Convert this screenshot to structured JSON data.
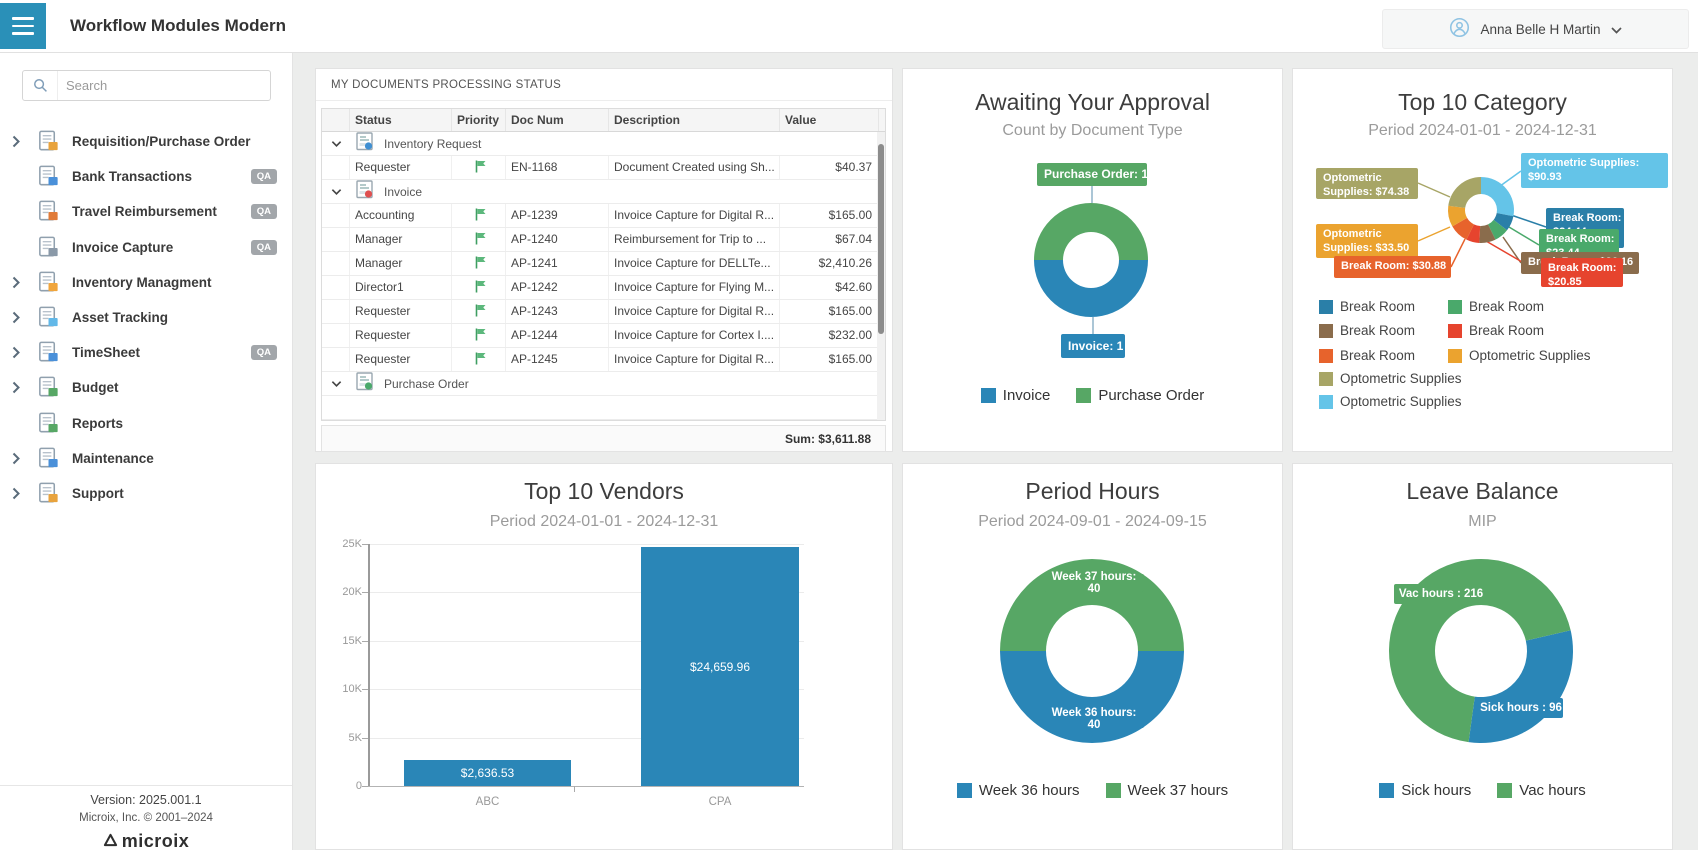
{
  "header": {
    "title": "Workflow Modules Modern",
    "user_name": "Anna Belle H Martin"
  },
  "sidebar": {
    "search_placeholder": "Search",
    "items": [
      {
        "label": "Requisition/Purchase Order",
        "expandable": true,
        "badge": "",
        "icon_color": "#e8a33d"
      },
      {
        "label": "Bank Transactions",
        "expandable": false,
        "badge": "QA",
        "icon_color": "#4a90d9"
      },
      {
        "label": "Travel Reimbursement",
        "expandable": false,
        "badge": "QA",
        "icon_color": "#e07b39"
      },
      {
        "label": "Invoice Capture",
        "expandable": false,
        "badge": "QA",
        "icon_color": "#8a99a8"
      },
      {
        "label": "Inventory Managment",
        "expandable": true,
        "badge": "",
        "icon_color": "#f0a53c"
      },
      {
        "label": "Asset Tracking",
        "expandable": true,
        "badge": "",
        "icon_color": "#62b8e8"
      },
      {
        "label": "TimeSheet",
        "expandable": true,
        "badge": "QA",
        "icon_color": "#4a90d9"
      },
      {
        "label": "Budget",
        "expandable": true,
        "badge": "",
        "icon_color": "#57a765"
      },
      {
        "label": "Reports",
        "expandable": false,
        "badge": "",
        "icon_color": "#57a765"
      },
      {
        "label": "Maintenance",
        "expandable": true,
        "badge": "",
        "icon_color": "#4a90d9"
      },
      {
        "label": "Support",
        "expandable": true,
        "badge": "",
        "icon_color": "#e8a33d"
      }
    ],
    "footer": {
      "version": "Version: 2025.001.1",
      "copyright": "Microix, Inc. © 2001–2024",
      "logo_text": "microix"
    }
  },
  "documents_panel": {
    "title": "MY DOCUMENTS PROCESSING STATUS",
    "columns": [
      "Status",
      "Priority",
      "Doc Num",
      "Description",
      "Value"
    ],
    "groups": [
      {
        "name": "Inventory Request",
        "accent": "#3f8fd2",
        "rows": [
          {
            "status": "Requester",
            "priority": "green-flag",
            "doc_num": "EN-1168",
            "description": "Document Created using Sh...",
            "value": "$40.37"
          }
        ]
      },
      {
        "name": "Invoice",
        "accent": "#e05050",
        "rows": [
          {
            "status": "Accounting",
            "priority": "green-flag",
            "doc_num": "AP-1239",
            "description": "Invoice Capture for Digital R...",
            "value": "$165.00"
          },
          {
            "status": "Manager",
            "priority": "green-flag",
            "doc_num": "AP-1240",
            "description": "Reimbursement for Trip to ...",
            "value": "$67.04"
          },
          {
            "status": "Manager",
            "priority": "green-flag",
            "doc_num": "AP-1241",
            "description": "Invoice Capture for DELLTe...",
            "value": "$2,410.26"
          },
          {
            "status": "Director1",
            "priority": "green-flag",
            "doc_num": "AP-1242",
            "description": "Invoice Capture for Flying M...",
            "value": "$42.60"
          },
          {
            "status": "Requester",
            "priority": "green-flag",
            "doc_num": "AP-1243",
            "description": "Invoice Capture for Digital R...",
            "value": "$165.00"
          },
          {
            "status": "Requester",
            "priority": "green-flag",
            "doc_num": "AP-1244",
            "description": "Invoice Capture for Cortex I....",
            "value": "$232.00"
          },
          {
            "status": "Requester",
            "priority": "green-flag",
            "doc_num": "AP-1245",
            "description": "Invoice Capture for Digital R...",
            "value": "$165.00"
          }
        ]
      },
      {
        "name": "Purchase Order",
        "accent": "#4aa96b",
        "rows": []
      }
    ],
    "sum_label": "Sum: $3,611.88"
  },
  "chart_data": [
    {
      "id": "approval",
      "type": "pie",
      "title": "Awaiting Your Approval",
      "subtitle": "Count by Document Type",
      "series": [
        {
          "name": "Purchase Order",
          "value": 1,
          "color": "#57a765",
          "callout": "Purchase Order: 1"
        },
        {
          "name": "Invoice",
          "value": 1,
          "color": "#2a86b7",
          "callout": "Invoice: 1"
        }
      ],
      "rotation": 270,
      "legend": [
        {
          "label": "Invoice",
          "color": "#2a86b7"
        },
        {
          "label": "Purchase Order",
          "color": "#57a765"
        }
      ],
      "legend_position": "bottom"
    },
    {
      "id": "category",
      "type": "pie",
      "title": "Top 10 Category",
      "subtitle": "Period 2024-01-01 - 2024-12-31",
      "series": [
        {
          "name": "Optometric Supplies",
          "value": 90.93,
          "color": "#64c4e8"
        },
        {
          "name": "Break Room",
          "value": 24.44,
          "color": "#2a7fa8"
        },
        {
          "name": "Break Room",
          "value": 23.44,
          "color": "#4aa96b"
        },
        {
          "name": "Break Room",
          "value": 26.16,
          "color": "#8a6c4c"
        },
        {
          "name": "Break Room",
          "value": 20.85,
          "color": "#e6442e"
        },
        {
          "name": "Break Room",
          "value": 30.88,
          "color": "#e7632c"
        },
        {
          "name": "Optometric Supplies",
          "value": 33.5,
          "color": "#eba32f"
        },
        {
          "name": "Optometric Supplies",
          "value": 74.38,
          "color": "#a7a566"
        }
      ],
      "rotation": 0,
      "callouts": [
        {
          "lines": [
            "Optometric",
            "Supplies: $74.38"
          ],
          "color": "#a7a566"
        },
        {
          "lines": [
            "Optometric Supplies:",
            "$90.93"
          ],
          "color": "#64c4e8"
        },
        {
          "lines": [
            "Break Room:",
            "$24.44"
          ],
          "color": "#2a7fa8"
        },
        {
          "lines": [
            "Break Room:",
            "$23.44"
          ],
          "color": "#4aa96b"
        },
        {
          "lines": [
            "Break Room: $26.16"
          ],
          "color": "#8a6c4c"
        },
        {
          "lines": [
            "Break Room:",
            "$20.85"
          ],
          "color": "#e6442e"
        },
        {
          "lines": [
            "Optometric",
            "Supplies: $33.50"
          ],
          "color": "#eba32f"
        },
        {
          "lines": [
            "Break Room: $30.88"
          ],
          "color": "#e7632c"
        }
      ],
      "legend": [
        {
          "label": "Break Room",
          "color": "#2a7fa8"
        },
        {
          "label": "Break Room",
          "color": "#4aa96b"
        },
        {
          "label": "Break Room",
          "color": "#8a6c4c"
        },
        {
          "label": "Break Room",
          "color": "#e6442e"
        },
        {
          "label": "Break Room",
          "color": "#e7632c"
        },
        {
          "label": "Optometric Supplies",
          "color": "#eba32f"
        },
        {
          "label": "Optometric Supplies",
          "color": "#a7a566"
        },
        {
          "label": "Optometric Supplies",
          "color": "#64c4e8"
        }
      ],
      "legend_position": "bottom-2col"
    },
    {
      "id": "vendors",
      "type": "bar",
      "title": "Top 10 Vendors",
      "subtitle": "Period 2024-01-01 - 2024-12-31",
      "categories": [
        "ABC",
        "CPA"
      ],
      "values": [
        2636.53,
        24659.96
      ],
      "bar_labels": [
        "$2,636.53",
        "$24,659.96"
      ],
      "color": "#2a86b7",
      "ylim": [
        0,
        25000
      ],
      "yticks": [
        {
          "value": 0,
          "label": "0"
        },
        {
          "value": 5000,
          "label": "5K"
        },
        {
          "value": 10000,
          "label": "10K"
        },
        {
          "value": 15000,
          "label": "15K"
        },
        {
          "value": 20000,
          "label": "20K"
        },
        {
          "value": 25000,
          "label": "25K"
        }
      ],
      "grid": true,
      "legend_position": "none"
    },
    {
      "id": "hours",
      "type": "pie",
      "title": "Period Hours",
      "subtitle": "Period 2024-09-01 - 2024-09-15",
      "series": [
        {
          "name": "Week 37 hours",
          "value": 40,
          "color": "#57a765",
          "callout": "Week 37 hours: 40"
        },
        {
          "name": "Week 36 hours",
          "value": 40,
          "color": "#2a86b7",
          "callout": "Week 36 hours: 40"
        }
      ],
      "rotation": 270,
      "legend": [
        {
          "label": "Week 36 hours",
          "color": "#2a86b7"
        },
        {
          "label": "Week 37 hours",
          "color": "#57a765"
        }
      ],
      "legend_position": "bottom"
    },
    {
      "id": "leave",
      "type": "pie",
      "title": "Leave Balance",
      "subtitle": "MIP",
      "series": [
        {
          "name": "Sick hours",
          "value": 96,
          "color": "#2a86b7",
          "callout": "Sick hours : 96"
        },
        {
          "name": "Vac hours",
          "value": 216,
          "color": "#57a765",
          "callout": "Vac hours : 216"
        }
      ],
      "rotation": 77,
      "legend": [
        {
          "label": "Sick hours",
          "color": "#2a86b7"
        },
        {
          "label": "Vac hours",
          "color": "#57a765"
        }
      ],
      "legend_position": "bottom"
    }
  ]
}
